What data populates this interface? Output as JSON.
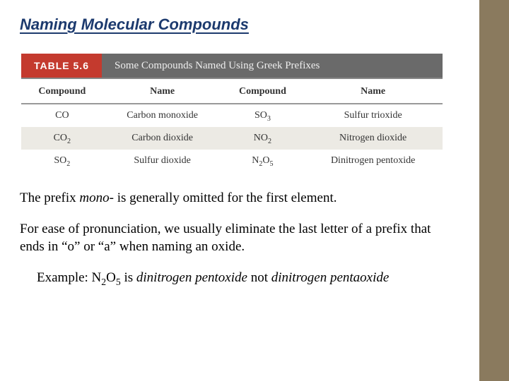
{
  "title": "Naming Molecular Compounds",
  "accent_color": "#8a7a5e",
  "table": {
    "badge": "TABLE 5.6",
    "badge_bg": "#c43a2e",
    "caption": "Some Compounds Named Using Greek Prefixes",
    "caption_bg": "#6a6a6a",
    "columns": [
      "Compound",
      "Name",
      "Compound",
      "Name"
    ],
    "alt_row_bg": "#eceae4",
    "rows": [
      {
        "c1": "CO",
        "c1_sub": "",
        "n1": "Carbon monoxide",
        "c2": "SO",
        "c2_sub": "3",
        "n2": "Sulfur trioxide"
      },
      {
        "c1": "CO",
        "c1_sub": "2",
        "n1": "Carbon dioxide",
        "c2": "NO",
        "c2_sub": "2",
        "n2": "Nitrogen dioxide"
      },
      {
        "c1": "SO",
        "c1_sub": "2",
        "n1": "Sulfur dioxide",
        "c2": "N",
        "c2_sub": "2O5",
        "n2": "Dinitrogen pentoxide"
      }
    ]
  },
  "para1_a": "The prefix ",
  "para1_mono": "mono-",
  "para1_b": " is generally omitted for the first element.",
  "para2": "For ease of pronunciation, we usually eliminate the last letter of a prefix that ends in “o” or “a” when naming an oxide.",
  "example": {
    "lead": "Example: N",
    "sub1": "2",
    "mid": "O",
    "sub2": "5",
    "after": " is ",
    "correct": "dinitrogen pentoxide",
    "not": " not ",
    "wrong_a": "dinitrogen pent",
    "wrong_letter": "a",
    "wrong_b": "oxide"
  }
}
